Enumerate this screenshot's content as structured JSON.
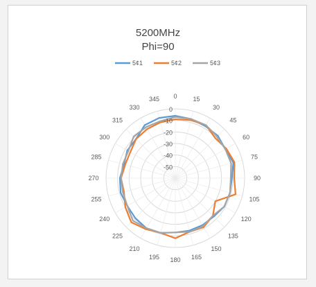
{
  "chart_data": {
    "type": "radar",
    "title": "5200MHz",
    "subtitle": "Phi=90",
    "angles": [
      0,
      15,
      30,
      45,
      60,
      75,
      90,
      105,
      120,
      135,
      150,
      165,
      180,
      195,
      210,
      225,
      240,
      255,
      270,
      285,
      300,
      315,
      330,
      345
    ],
    "radial_ticks": [
      0,
      -10,
      -20,
      -30,
      -40,
      -50
    ],
    "rlim": [
      -60,
      0
    ],
    "grid": true,
    "legend": "top",
    "series": [
      {
        "name": "5¢1",
        "color": "#5b9bd5",
        "values": [
          -6,
          -7,
          -8,
          -8,
          -10,
          -8,
          -11,
          -11,
          -11,
          -13,
          -13,
          -13,
          -13,
          -11,
          -10,
          -11,
          -12,
          -11,
          -12,
          -14,
          -12,
          -12,
          -7,
          -6
        ]
      },
      {
        "name": "5¢2",
        "color": "#ed7d31",
        "values": [
          -9,
          -8,
          -7,
          -11,
          -9,
          -7,
          -9,
          -6,
          -20,
          -14,
          -11,
          -12,
          -8,
          -11,
          -9,
          -6,
          -10,
          -14,
          -13,
          -15,
          -15,
          -12,
          -11,
          -10
        ]
      },
      {
        "name": "5¢3",
        "color": "#a5a5a5",
        "values": [
          -7,
          -7,
          -7,
          -9,
          -10,
          -10,
          -12,
          -11,
          -11,
          -14,
          -12,
          -12,
          -13,
          -11,
          -10,
          -8,
          -12,
          -13,
          -13,
          -13,
          -13,
          -9,
          -9,
          -9
        ]
      }
    ]
  }
}
